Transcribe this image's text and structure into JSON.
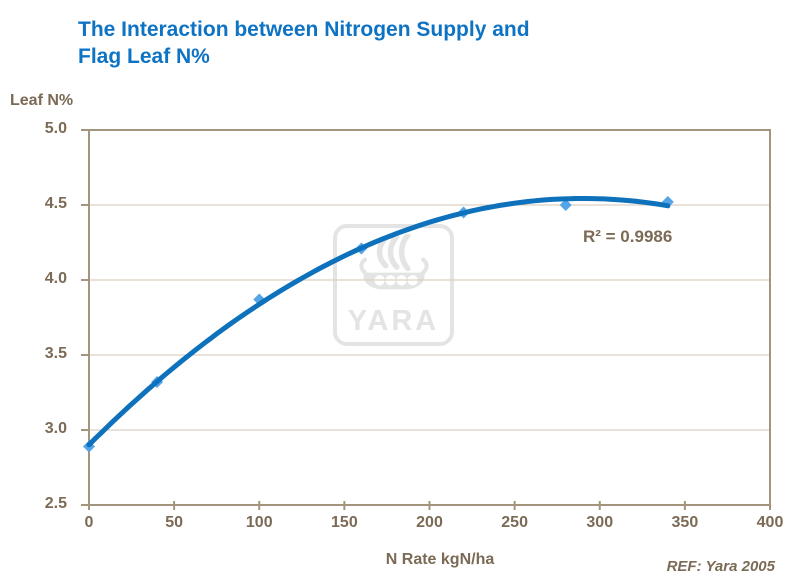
{
  "title": "The Interaction between Nitrogen Supply and\nFlag Leaf N%",
  "watermark": {
    "brand": "YARA",
    "icon": "viking-ship-icon"
  },
  "annotations": {
    "r_squared": "R² = 0.9986"
  },
  "footer": {
    "ref": "REF: Yara 2005"
  },
  "colors": {
    "title_blue": "#0f73c4",
    "line_blue": "#0e71bc",
    "marker_blue": "#55a4e6",
    "text_brown": "#7b6a55",
    "axis_brown": "#a3947e",
    "gridline": "#d9d0c3",
    "watermark_gray": "#e4e4e4"
  },
  "chart_data": {
    "type": "scatter",
    "title": "The Interaction between Nitrogen Supply and Flag Leaf N%",
    "xlabel": "N Rate kgN/ha",
    "ylabel": "Leaf N%",
    "xlim": [
      0,
      400
    ],
    "ylim": [
      2.5,
      5.0
    ],
    "x_tick_labels": [
      "0",
      "50",
      "100",
      "150",
      "200",
      "250",
      "300",
      "350",
      "400"
    ],
    "y_tick_labels": [
      "5.0",
      "4.5",
      "4.0",
      "3.5",
      "3.0",
      "2.5"
    ],
    "grid": "horizontal",
    "legend": "none",
    "points": [
      {
        "x": 0,
        "y": 2.89
      },
      {
        "x": 40,
        "y": 3.32
      },
      {
        "x": 100,
        "y": 3.87
      },
      {
        "x": 160,
        "y": 4.21
      },
      {
        "x": 220,
        "y": 4.45
      },
      {
        "x": 280,
        "y": 4.5
      },
      {
        "x": 340,
        "y": 4.52
      }
    ],
    "trendline": {
      "type": "polynomial",
      "order": 2,
      "r_squared": 0.9986
    }
  }
}
